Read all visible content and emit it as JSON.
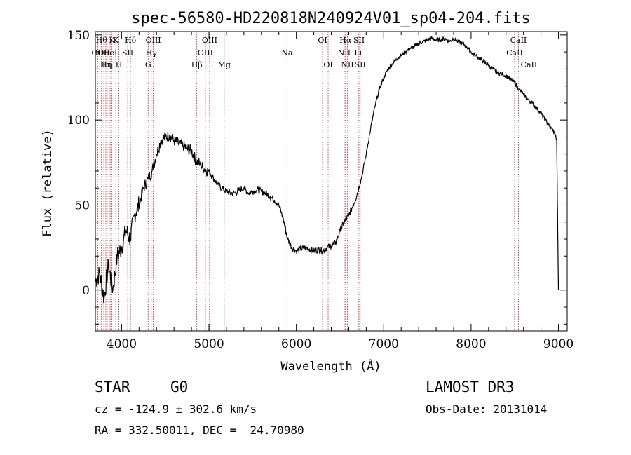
{
  "chart_data": {
    "type": "line",
    "title": "spec-56580-HD220818N240924V01_sp04-204.fits",
    "xlabel": "Wavelength (Å)",
    "ylabel": "Flux (relative)",
    "xlim": [
      3700,
      9100
    ],
    "ylim": [
      -24,
      152
    ],
    "x_ticks": [
      {
        "value": 4000,
        "label": "4000"
      },
      {
        "value": 5000,
        "label": "5000"
      },
      {
        "value": 6000,
        "label": "6000"
      },
      {
        "value": 7000,
        "label": "7000"
      },
      {
        "value": 8000,
        "label": "8000"
      },
      {
        "value": 9000,
        "label": "9000"
      }
    ],
    "y_ticks": [
      {
        "value": 0,
        "label": "0"
      },
      {
        "value": 50,
        "label": "50"
      },
      {
        "value": 100,
        "label": "100"
      },
      {
        "value": 150,
        "label": "150"
      }
    ],
    "grid": false,
    "series": [
      {
        "color": "#000000",
        "x": [
          3700,
          3750,
          3800,
          3850,
          3900,
          3950,
          4000,
          4050,
          4100,
          4150,
          4200,
          4250,
          4300,
          4350,
          4400,
          4450,
          4500,
          4550,
          4600,
          4650,
          4700,
          4750,
          4800,
          4850,
          4900,
          4950,
          5000,
          5050,
          5100,
          5150,
          5200,
          5250,
          5300,
          5350,
          5400,
          5450,
          5500,
          5550,
          5600,
          5650,
          5700,
          5750,
          5800,
          5850,
          5900,
          5950,
          6000,
          6050,
          6100,
          6150,
          6200,
          6250,
          6300,
          6350,
          6400,
          6450,
          6500,
          6550,
          6600,
          6650,
          6700,
          6750,
          6800,
          6850,
          6900,
          6950,
          7000,
          7050,
          7100,
          7150,
          7200,
          7250,
          7300,
          7350,
          7400,
          7450,
          7500,
          7550,
          7600,
          7650,
          7700,
          7750,
          7800,
          7850,
          7900,
          7950,
          8000,
          8050,
          8100,
          8150,
          8200,
          8250,
          8300,
          8350,
          8400,
          8450,
          8500,
          8550,
          8600,
          8650,
          8700,
          8750,
          8800,
          8850,
          8900,
          8950,
          8980,
          9000
        ],
        "y": [
          5,
          10,
          -5,
          15,
          0,
          20,
          25,
          35,
          30,
          45,
          50,
          60,
          65,
          70,
          80,
          88,
          90,
          91,
          88,
          86,
          85,
          83,
          82,
          76,
          74,
          71,
          70,
          66,
          62,
          60,
          58,
          57,
          57,
          59,
          60,
          57,
          58,
          59,
          58,
          57,
          55,
          53,
          50,
          42,
          30,
          25,
          23,
          24,
          25,
          24,
          23,
          24,
          23,
          25,
          26,
          28,
          35,
          40,
          44,
          50,
          57,
          67,
          80,
          95,
          108,
          118,
          125,
          130,
          133,
          136,
          138,
          140,
          142,
          143,
          145,
          146,
          147,
          148,
          147,
          147,
          148,
          146,
          148,
          146,
          145,
          143,
          140,
          138,
          136,
          134,
          132,
          130,
          128,
          127,
          126,
          124,
          122,
          118,
          115,
          112,
          110,
          107,
          104,
          100,
          96,
          93,
          88,
          0
        ]
      }
    ],
    "reference_lines": [
      {
        "wavelength": 3727,
        "label": "OII",
        "row": 2
      },
      {
        "wavelength": 3770,
        "label": "Hθ",
        "row": 1
      },
      {
        "wavelength": 3797,
        "label": "OII",
        "row": 2
      },
      {
        "wavelength": 3820,
        "label": "Hη",
        "row": 3
      },
      {
        "wavelength": 3835,
        "label": "Hη",
        "row": 3
      },
      {
        "wavelength": 3869,
        "label": "HeI",
        "row": 2
      },
      {
        "wavelength": 3890,
        "label": "K",
        "row": 1
      },
      {
        "wavelength": 3934,
        "label": "K",
        "row": 1
      },
      {
        "wavelength": 3969,
        "label": "H",
        "row": 3
      },
      {
        "wavelength": 4070,
        "label": "SII",
        "row": 2
      },
      {
        "wavelength": 4102,
        "label": "Hδ",
        "row": 1
      },
      {
        "wavelength": 4304,
        "label": "G",
        "row": 3
      },
      {
        "wavelength": 4340,
        "label": "Hγ",
        "row": 2
      },
      {
        "wavelength": 4363,
        "label": "OIII",
        "row": 1
      },
      {
        "wavelength": 4861,
        "label": "Hβ",
        "row": 3
      },
      {
        "wavelength": 4959,
        "label": "OIII",
        "row": 2
      },
      {
        "wavelength": 5007,
        "label": "OIII",
        "row": 1
      },
      {
        "wavelength": 5175,
        "label": "Mg",
        "row": 3
      },
      {
        "wavelength": 5893,
        "label": "Na",
        "row": 2
      },
      {
        "wavelength": 6300,
        "label": "OI",
        "row": 1
      },
      {
        "wavelength": 6364,
        "label": "OI",
        "row": 3
      },
      {
        "wavelength": 6548,
        "label": "NII",
        "row": 2
      },
      {
        "wavelength": 6563,
        "label": "Hα",
        "row": 1
      },
      {
        "wavelength": 6584,
        "label": "NII",
        "row": 3
      },
      {
        "wavelength": 6707,
        "label": "Li",
        "row": 2
      },
      {
        "wavelength": 6717,
        "label": "SII",
        "row": 1
      },
      {
        "wavelength": 6731,
        "label": "SII",
        "row": 3
      },
      {
        "wavelength": 8498,
        "label": "CaII",
        "row": 2
      },
      {
        "wavelength": 8542,
        "label": "CaII",
        "row": 1
      },
      {
        "wavelength": 8662,
        "label": "CaII",
        "row": 3
      }
    ]
  },
  "info": {
    "object_type": "STAR",
    "subclass": "G0",
    "survey": "LAMOST DR3",
    "redshift_line": "cz = -124.9 ± 302.6 km/s",
    "obs_date_line": "Obs-Date: 20131014",
    "coords_line": "RA = 332.50011, DEC =  24.70980"
  }
}
